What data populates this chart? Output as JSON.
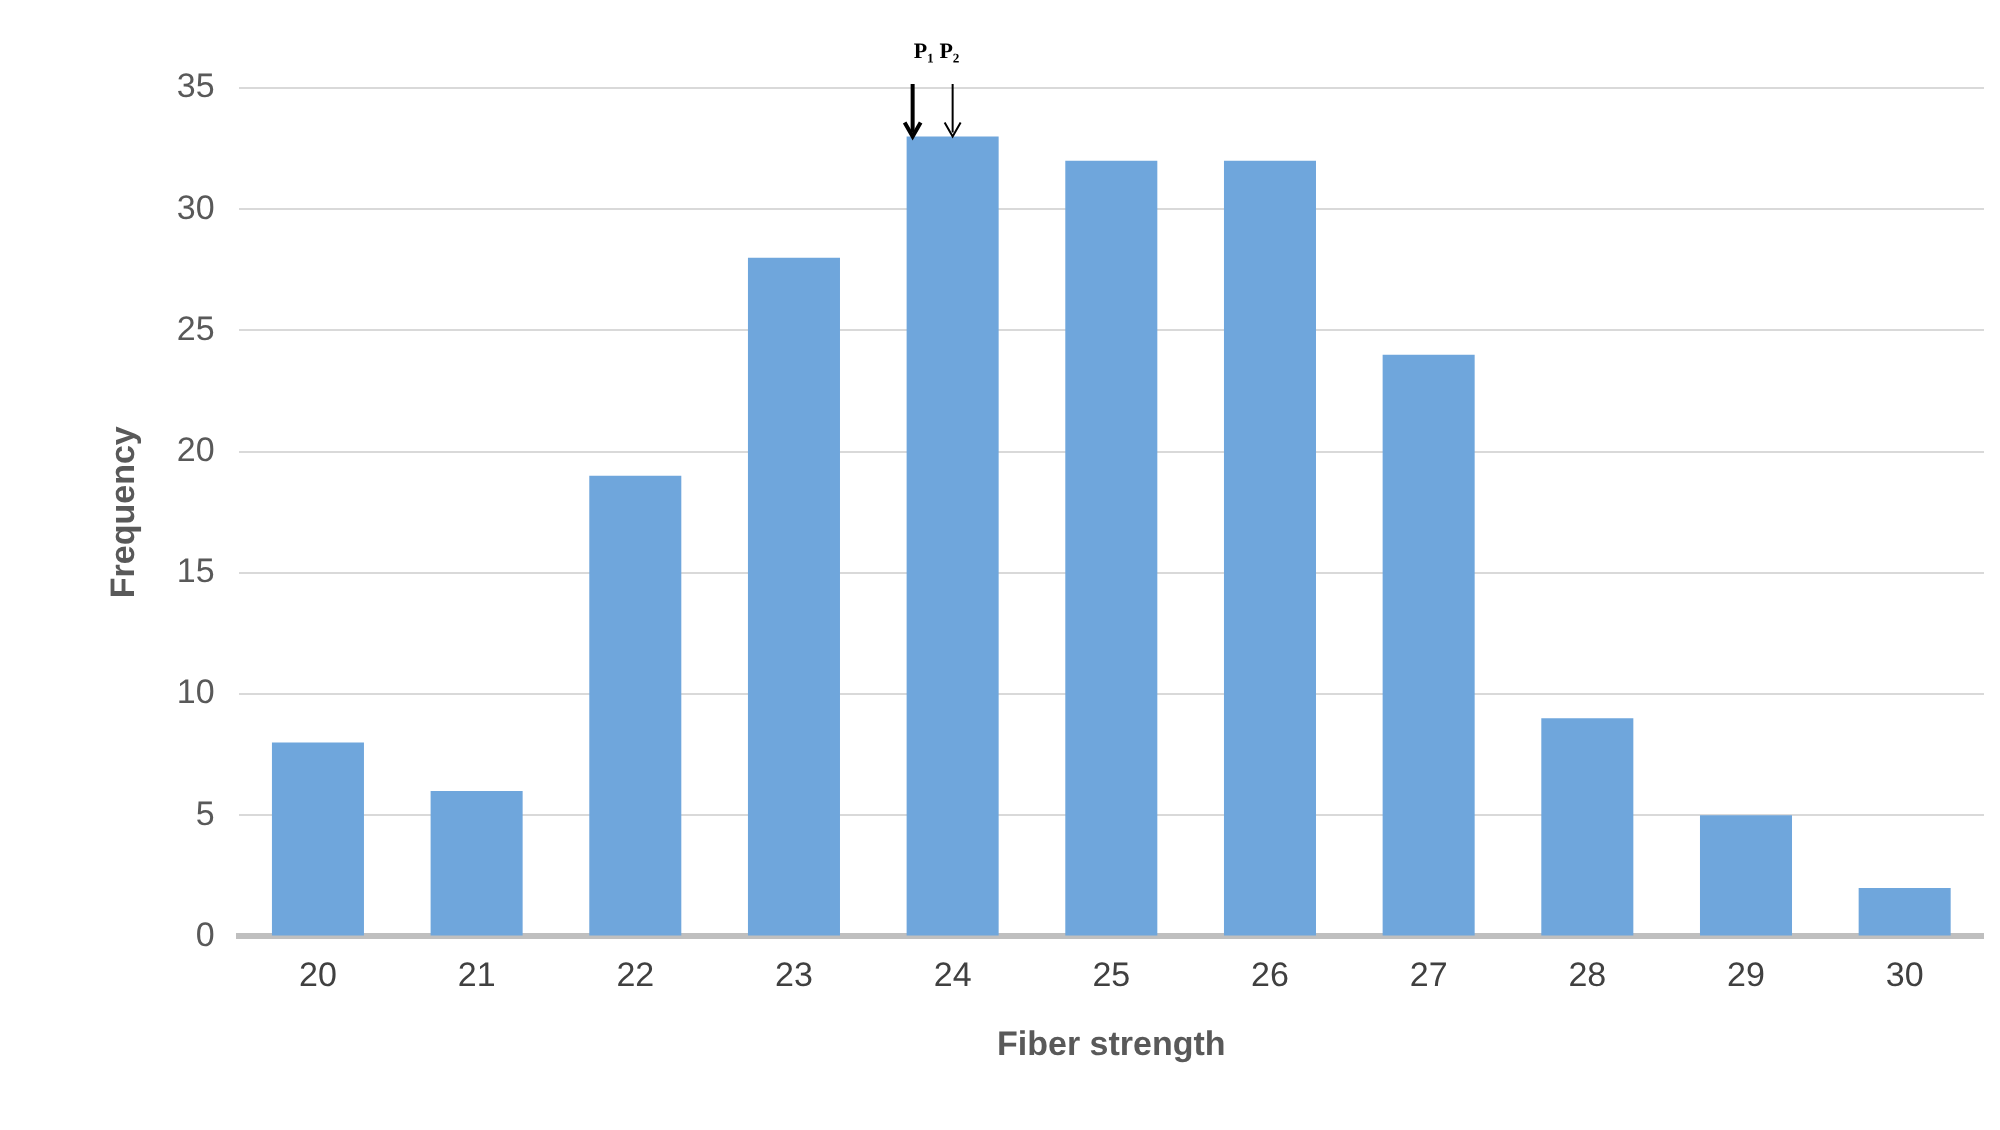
{
  "chart_data": {
    "type": "bar",
    "xlabel": "Fiber strength",
    "ylabel": "Frequency",
    "categories": [
      "20",
      "21",
      "22",
      "23",
      "24",
      "25",
      "26",
      "27",
      "28",
      "29",
      "30"
    ],
    "values": [
      8,
      6,
      19,
      28,
      33,
      32,
      32,
      24,
      9,
      5,
      2
    ],
    "color": "#6fa6dc",
    "ylim": [
      0,
      35
    ],
    "yticks": [
      0,
      5,
      10,
      15,
      20,
      25,
      30,
      35
    ],
    "grid": "y",
    "legend": false,
    "annotations": [
      {
        "text": "P₁ P₂",
        "x": "24",
        "y": 33
      }
    ]
  }
}
